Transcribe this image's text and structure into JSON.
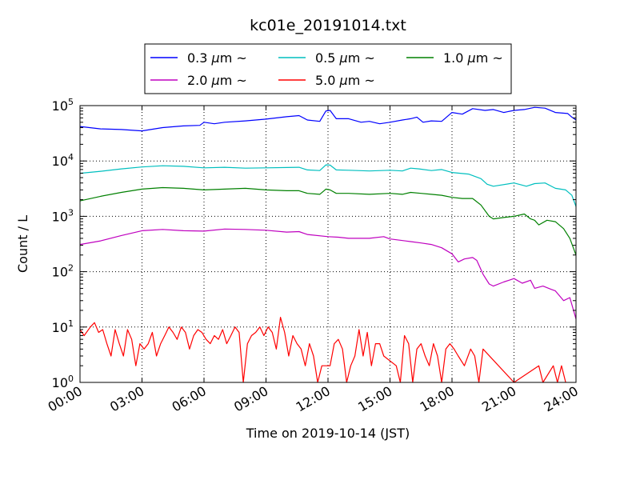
{
  "chart_data": {
    "type": "line",
    "title": "kc01e_20191014.txt",
    "xlabel": "Time on 2019-10-14 (JST)",
    "ylabel": "Count / L",
    "x_range_hours": [
      0,
      24
    ],
    "x_ticks": [
      {
        "hour": 0,
        "label": "00:00"
      },
      {
        "hour": 3,
        "label": "03:00"
      },
      {
        "hour": 6,
        "label": "06:00"
      },
      {
        "hour": 9,
        "label": "09:00"
      },
      {
        "hour": 12,
        "label": "12:00"
      },
      {
        "hour": 15,
        "label": "15:00"
      },
      {
        "hour": 18,
        "label": "18:00"
      },
      {
        "hour": 21,
        "label": "21:00"
      },
      {
        "hour": 24,
        "label": "24:00"
      }
    ],
    "y_scale": "log",
    "ylim": [
      1,
      100000
    ],
    "y_ticks": [
      {
        "value": 1,
        "base": "10",
        "exp": "0"
      },
      {
        "value": 10,
        "base": "10",
        "exp": "1"
      },
      {
        "value": 100,
        "base": "10",
        "exp": "2"
      },
      {
        "value": 1000,
        "base": "10",
        "exp": "3"
      },
      {
        "value": 10000,
        "base": "10",
        "exp": "4"
      },
      {
        "value": 100000,
        "base": "10",
        "exp": "5"
      }
    ],
    "grid": true,
    "legend_position": "top",
    "series": [
      {
        "name": "0.3 μm ~",
        "legend_text": "0.3",
        "color": "#0000ff",
        "points": [
          [
            0,
            42000
          ],
          [
            1,
            38000
          ],
          [
            2,
            37000
          ],
          [
            3,
            35000
          ],
          [
            4,
            40000
          ],
          [
            5,
            43000
          ],
          [
            5.8,
            44000
          ],
          [
            6,
            50000
          ],
          [
            6.5,
            47000
          ],
          [
            7,
            50000
          ],
          [
            8,
            53000
          ],
          [
            9,
            57000
          ],
          [
            10,
            63000
          ],
          [
            10.6,
            66000
          ],
          [
            11,
            55000
          ],
          [
            11.6,
            52000
          ],
          [
            11.9,
            80000
          ],
          [
            12.1,
            82000
          ],
          [
            12.4,
            58000
          ],
          [
            13,
            58000
          ],
          [
            13.6,
            50000
          ],
          [
            14,
            52000
          ],
          [
            14.5,
            47000
          ],
          [
            15,
            50000
          ],
          [
            15.6,
            55000
          ],
          [
            16,
            58000
          ],
          [
            16.3,
            62000
          ],
          [
            16.6,
            50000
          ],
          [
            17,
            53000
          ],
          [
            17.5,
            52000
          ],
          [
            18,
            75000
          ],
          [
            18.5,
            70000
          ],
          [
            19,
            88000
          ],
          [
            19.6,
            82000
          ],
          [
            20,
            85000
          ],
          [
            20.5,
            75000
          ],
          [
            21,
            82000
          ],
          [
            21.5,
            85000
          ],
          [
            22,
            93000
          ],
          [
            22.5,
            90000
          ],
          [
            23,
            75000
          ],
          [
            23.6,
            72000
          ],
          [
            23.8,
            62000
          ],
          [
            24,
            55000
          ]
        ]
      },
      {
        "name": "0.5 μm ~",
        "legend_text": "0.5",
        "color": "#00bfbf",
        "points": [
          [
            0,
            6000
          ],
          [
            1,
            6500
          ],
          [
            2,
            7200
          ],
          [
            3,
            7800
          ],
          [
            4,
            8200
          ],
          [
            5,
            8000
          ],
          [
            6,
            7500
          ],
          [
            7,
            7700
          ],
          [
            8,
            7400
          ],
          [
            9,
            7500
          ],
          [
            10,
            7600
          ],
          [
            10.6,
            7700
          ],
          [
            11,
            6900
          ],
          [
            11.6,
            6700
          ],
          [
            11.9,
            8500
          ],
          [
            12.1,
            8400
          ],
          [
            12.4,
            6900
          ],
          [
            13,
            6800
          ],
          [
            14,
            6600
          ],
          [
            15,
            6800
          ],
          [
            15.6,
            6600
          ],
          [
            16,
            7400
          ],
          [
            16.4,
            7200
          ],
          [
            17,
            6700
          ],
          [
            17.5,
            7000
          ],
          [
            18,
            6200
          ],
          [
            18.8,
            5800
          ],
          [
            19.4,
            4800
          ],
          [
            19.7,
            3800
          ],
          [
            20,
            3500
          ],
          [
            21,
            4000
          ],
          [
            21.6,
            3500
          ],
          [
            22,
            3900
          ],
          [
            22.5,
            4000
          ],
          [
            23,
            3200
          ],
          [
            23.5,
            3000
          ],
          [
            23.8,
            2400
          ],
          [
            24,
            1500
          ]
        ]
      },
      {
        "name": "1.0 μm ~",
        "legend_text": "1.0",
        "color": "#008000",
        "points": [
          [
            0,
            1900
          ],
          [
            1,
            2300
          ],
          [
            2,
            2700
          ],
          [
            3,
            3100
          ],
          [
            4,
            3300
          ],
          [
            5,
            3200
          ],
          [
            6,
            3000
          ],
          [
            7,
            3100
          ],
          [
            8,
            3200
          ],
          [
            9,
            3000
          ],
          [
            10,
            2900
          ],
          [
            10.6,
            2900
          ],
          [
            11,
            2600
          ],
          [
            11.6,
            2500
          ],
          [
            11.9,
            3100
          ],
          [
            12.1,
            3000
          ],
          [
            12.4,
            2600
          ],
          [
            13,
            2600
          ],
          [
            14,
            2500
          ],
          [
            15,
            2600
          ],
          [
            15.6,
            2500
          ],
          [
            16,
            2700
          ],
          [
            16.5,
            2600
          ],
          [
            17,
            2500
          ],
          [
            17.5,
            2400
          ],
          [
            18,
            2200
          ],
          [
            18.5,
            2100
          ],
          [
            19,
            2100
          ],
          [
            19.4,
            1600
          ],
          [
            19.8,
            1000
          ],
          [
            20,
            900
          ],
          [
            20.5,
            950
          ],
          [
            21,
            1000
          ],
          [
            21.5,
            1100
          ],
          [
            21.8,
            900
          ],
          [
            22,
            850
          ],
          [
            22.2,
            700
          ],
          [
            22.6,
            850
          ],
          [
            23,
            800
          ],
          [
            23.4,
            600
          ],
          [
            23.7,
            400
          ],
          [
            24,
            200
          ]
        ]
      },
      {
        "name": "2.0 μm ~",
        "legend_text": "2.0",
        "color": "#bf00bf",
        "points": [
          [
            0,
            310
          ],
          [
            1,
            360
          ],
          [
            2,
            450
          ],
          [
            3,
            550
          ],
          [
            4,
            580
          ],
          [
            5,
            550
          ],
          [
            6,
            540
          ],
          [
            7,
            590
          ],
          [
            8,
            580
          ],
          [
            9,
            560
          ],
          [
            10,
            520
          ],
          [
            10.6,
            530
          ],
          [
            11,
            470
          ],
          [
            12,
            430
          ],
          [
            12.5,
            420
          ],
          [
            13,
            400
          ],
          [
            14,
            400
          ],
          [
            14.7,
            430
          ],
          [
            15,
            390
          ],
          [
            15.5,
            370
          ],
          [
            16,
            350
          ],
          [
            16.5,
            330
          ],
          [
            17,
            310
          ],
          [
            17.5,
            270
          ],
          [
            18,
            210
          ],
          [
            18.3,
            150
          ],
          [
            18.6,
            170
          ],
          [
            19,
            180
          ],
          [
            19.2,
            160
          ],
          [
            19.5,
            90
          ],
          [
            19.8,
            60
          ],
          [
            20,
            55
          ],
          [
            20.5,
            65
          ],
          [
            21,
            75
          ],
          [
            21.4,
            62
          ],
          [
            21.8,
            70
          ],
          [
            22,
            50
          ],
          [
            22.4,
            55
          ],
          [
            22.8,
            48
          ],
          [
            23,
            45
          ],
          [
            23.4,
            30
          ],
          [
            23.7,
            34
          ],
          [
            24,
            14
          ]
        ]
      },
      {
        "name": "5.0 μm ~",
        "legend_text": "5.0",
        "color": "#ff0000",
        "points": [
          [
            0,
            9
          ],
          [
            0.2,
            7
          ],
          [
            0.5,
            10
          ],
          [
            0.7,
            12
          ],
          [
            0.9,
            8
          ],
          [
            1.1,
            9
          ],
          [
            1.3,
            5
          ],
          [
            1.5,
            3
          ],
          [
            1.7,
            9
          ],
          [
            1.9,
            5
          ],
          [
            2.1,
            3
          ],
          [
            2.3,
            9
          ],
          [
            2.5,
            6
          ],
          [
            2.7,
            2
          ],
          [
            2.9,
            5
          ],
          [
            3.1,
            4
          ],
          [
            3.3,
            5
          ],
          [
            3.5,
            8
          ],
          [
            3.7,
            3
          ],
          [
            3.9,
            5
          ],
          [
            4.1,
            7
          ],
          [
            4.3,
            10
          ],
          [
            4.5,
            8
          ],
          [
            4.7,
            6
          ],
          [
            4.9,
            10
          ],
          [
            5.1,
            8
          ],
          [
            5.3,
            4
          ],
          [
            5.5,
            7
          ],
          [
            5.7,
            9
          ],
          [
            5.9,
            8
          ],
          [
            6.1,
            6
          ],
          [
            6.3,
            5
          ],
          [
            6.5,
            7
          ],
          [
            6.7,
            6
          ],
          [
            6.9,
            9
          ],
          [
            7.1,
            5
          ],
          [
            7.3,
            7
          ],
          [
            7.5,
            10
          ],
          [
            7.7,
            8
          ],
          [
            7.9,
            1
          ],
          [
            8.1,
            5
          ],
          [
            8.3,
            7
          ],
          [
            8.5,
            8
          ],
          [
            8.7,
            10
          ],
          [
            8.9,
            7
          ],
          [
            9.1,
            10
          ],
          [
            9.3,
            8
          ],
          [
            9.5,
            4
          ],
          [
            9.7,
            15
          ],
          [
            9.9,
            8
          ],
          [
            10.1,
            3
          ],
          [
            10.3,
            7
          ],
          [
            10.5,
            5
          ],
          [
            10.7,
            4
          ],
          [
            10.9,
            2
          ],
          [
            11.1,
            5
          ],
          [
            11.3,
            3
          ],
          [
            11.5,
            1
          ],
          [
            11.7,
            2
          ],
          [
            11.9,
            2
          ],
          [
            12.1,
            2
          ],
          [
            12.3,
            5
          ],
          [
            12.5,
            6
          ],
          [
            12.7,
            4
          ],
          [
            12.9,
            1
          ],
          [
            13.1,
            2
          ],
          [
            13.3,
            3
          ],
          [
            13.5,
            9
          ],
          [
            13.7,
            3
          ],
          [
            13.9,
            8
          ],
          [
            14.1,
            2
          ],
          [
            14.3,
            5
          ],
          [
            14.5,
            5
          ],
          [
            14.7,
            3
          ],
          [
            15.3,
            2
          ],
          [
            15.5,
            1
          ],
          [
            15.7,
            7
          ],
          [
            15.9,
            5
          ],
          [
            16.1,
            1
          ],
          [
            16.3,
            4
          ],
          [
            16.5,
            5
          ],
          [
            16.7,
            3
          ],
          [
            16.9,
            2
          ],
          [
            17.1,
            5
          ],
          [
            17.3,
            3
          ],
          [
            17.5,
            1
          ],
          [
            17.7,
            4
          ],
          [
            17.9,
            5
          ],
          [
            18.1,
            4
          ],
          [
            18.3,
            3
          ],
          [
            18.6,
            2
          ],
          [
            18.9,
            4
          ],
          [
            19.1,
            3
          ],
          [
            19.3,
            1
          ],
          [
            19.5,
            4
          ],
          [
            21,
            1
          ],
          [
            22.2,
            2
          ],
          [
            22.4,
            1
          ],
          [
            22.9,
            2
          ],
          [
            23.1,
            1
          ],
          [
            23.3,
            2
          ],
          [
            23.5,
            1
          ]
        ]
      }
    ]
  }
}
